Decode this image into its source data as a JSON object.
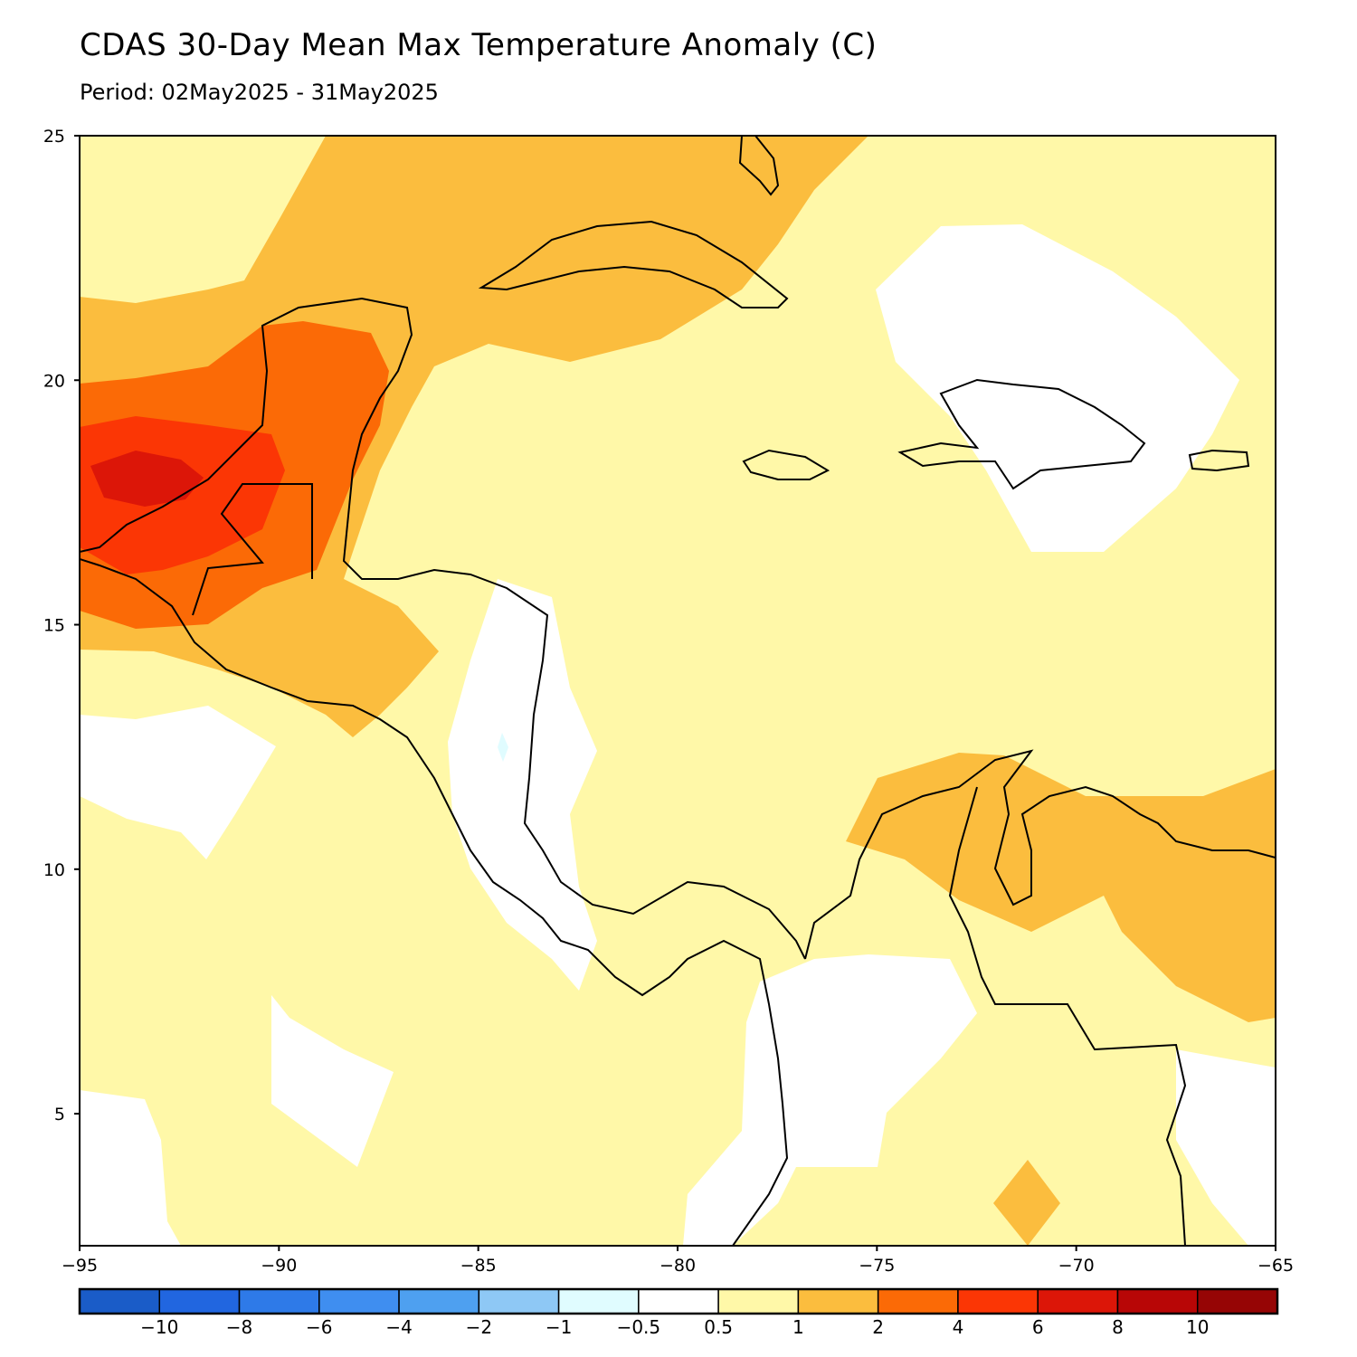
{
  "title": "CDAS 30-Day Mean Max Temperature Anomaly (C)",
  "subtitle": "Period: 02May2025 - 31May2025",
  "map": {
    "lon_range": [
      -95,
      -65
    ],
    "lat_range": [
      2.3,
      25
    ],
    "lon_ticks": [
      "-95",
      "-90",
      "-85",
      "-80",
      "-75",
      "-70",
      "-65"
    ],
    "lat_ticks": [
      "25",
      "20",
      "15",
      "10",
      "5"
    ]
  },
  "colorbar": {
    "colors": [
      "#1a5cc8",
      "#2166e0",
      "#2e7ae8",
      "#3f8ef0",
      "#4ea0f0",
      "#8ec8f5",
      "#e0fcff",
      "#ffffff",
      "#fff8a8",
      "#fbbd3e",
      "#fb6a06",
      "#fb3605",
      "#dc1608",
      "#b80606",
      "#960505"
    ],
    "labels": [
      "-10",
      "-8",
      "-6",
      "-4",
      "-2",
      "-1",
      "-0.5",
      "0.5",
      "1",
      "2",
      "4",
      "6",
      "8",
      "10"
    ]
  }
}
